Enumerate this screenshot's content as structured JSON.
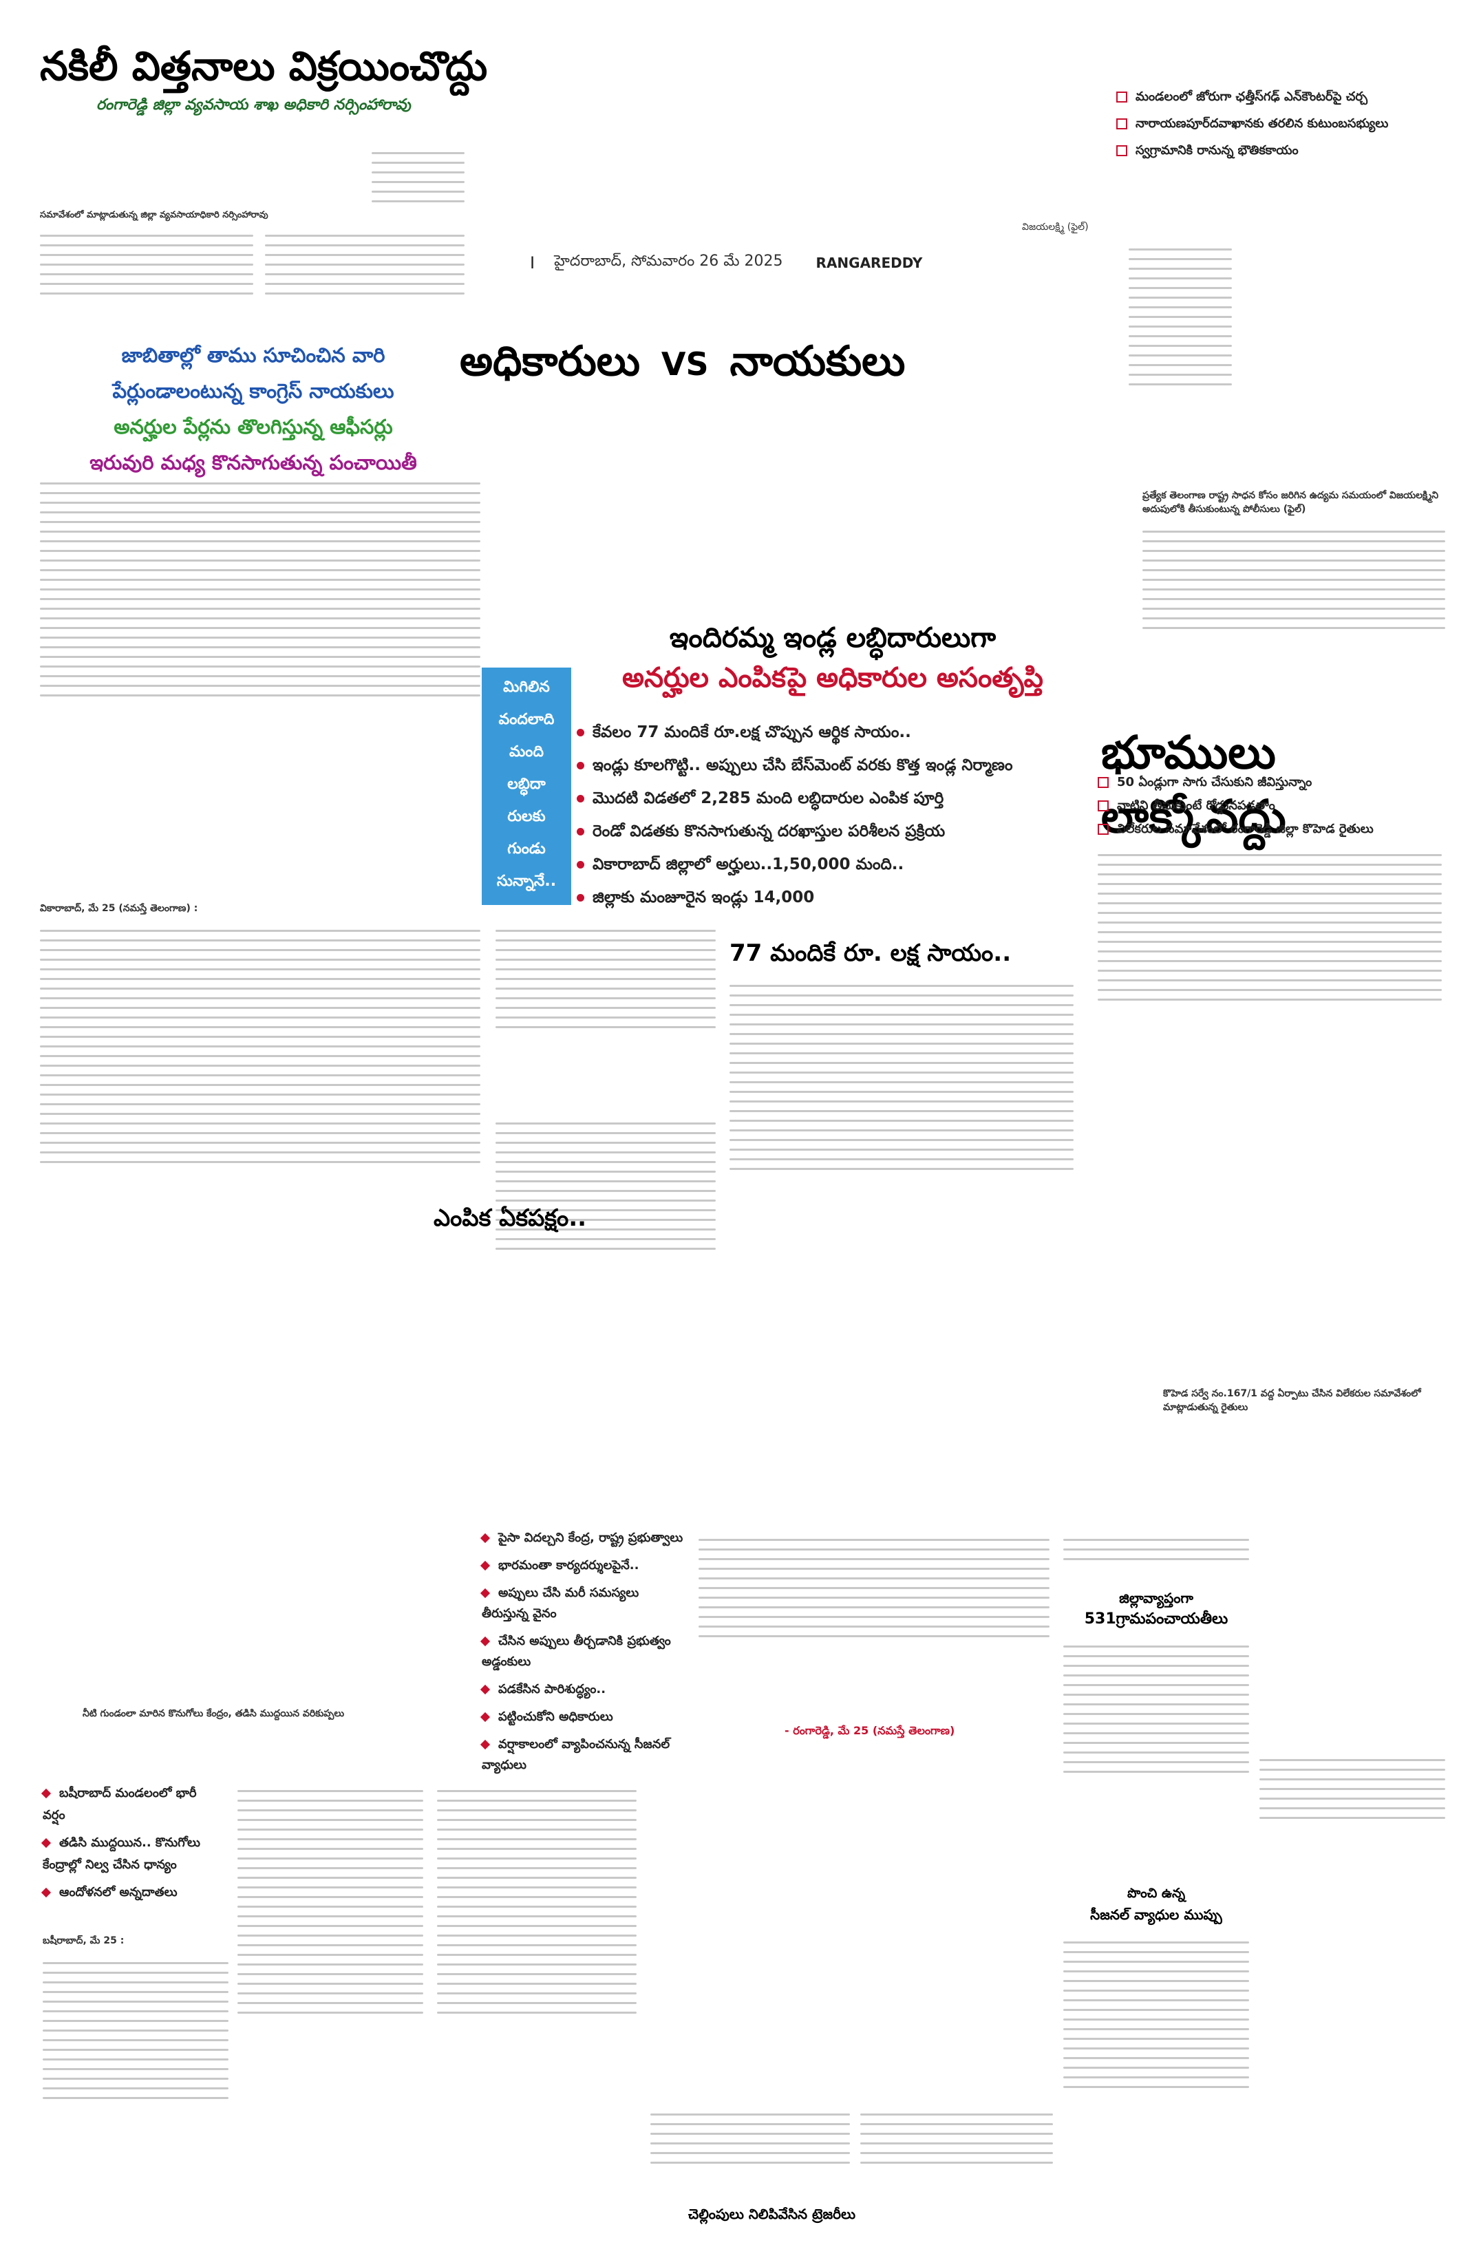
{
  "header": {
    "main_title": "నకిలీ విత్తనాలు విక్రయించొద్దు",
    "subtitle": "రంగారెడ్డి జిల్లా వ్యవసాయ శాఖ అధికారి నర్సింహారావు",
    "meeting_caption": "సమావేశంలో మాట్లాడుతున్న జిల్లా వ్యవసాయాధికారి నర్సింహారావు",
    "dateline": "హైదరాబాద్, సోమవారం 26 మే 2025",
    "section": "RANGAREDDY",
    "dateline_marker": "I"
  },
  "top_right_bullets": [
    "మండలంలో జోరుగా ఛత్తీస్‌గఢ్ ఎన్‌కౌంటర్‌పై చర్చ",
    "నారాయణపూర్‌దవాఖానకు తరలిన కుటుంబసభ్యులు",
    "స్వగ్రామానికి రానున్న భౌతికకాయం"
  ],
  "right_column_label": "విజయలక్ష్మి (ఫైల్)",
  "highlight_lines": [
    "జాబితాల్లో తాము సూచించిన వారి",
    "పేర్లుండాలంటున్న కాంగ్రెస్ నాయకులు",
    "అనర్హుల పేర్లను తొలగిస్తున్న ఆఫీసర్లు",
    "ఇరువురి మధ్య కొనసాగుతున్న పంచాయితీ"
  ],
  "center_headline": {
    "left": "అధికారులు",
    "vs": "VS",
    "right": "నాయకులు"
  },
  "photo_caption_right": "ప్రత్యేక తెలంగాణ రాష్ట్ర సాధన కోసం జరిగిన ఉద్యమ సమయంలో విజయలక్ష్మిని అదుపులోకి తీసుకుంటున్న పోలీసులు (ఫైల్)",
  "indiramma": {
    "headline_line1": "ఇందిరమ్మ ఇండ్ల లబ్ధిదారులుగా",
    "headline_line2": "అనర్హుల ఎంపికపై అధికారుల అసంతృప్తి",
    "side_label": [
      "మిగిలిన",
      "వందలాది",
      "మంది",
      "లబ్ధిదా",
      "రులకు",
      "గుండు",
      "సున్నానే.."
    ],
    "bullets": [
      "కేవలం 77 మందికే రూ.లక్ష చొప్పున ఆర్థిక సాయం..",
      "ఇండ్లు కూలగొట్టి.. అప్పులు చేసి బేస్‌మెంట్ వరకు కొత్త ఇండ్ల నిర్మాణం",
      "మొదటి విడతలో 2,285 మంది లబ్ధిదారుల ఎంపిక పూర్తి",
      "రెండో విడతకు కొనసాగుతున్న దరఖాస్తుల పరిశీలన ప్రక్రియ",
      "వికారాబాద్ జిల్లాలో అర్హులు..1,50,000 మంది..",
      "జిల్లాకు మంజూరైన ఇండ్లు 14,000"
    ],
    "subhead_lakh": "77 మందికే రూ. లక్ష సాయం..",
    "subhead_selection": "ఎంపిక ఏకపక్షం..",
    "dateline": "వికారాబాద్, మే 25 (నమస్తే తెలంగాణ) :"
  },
  "bhoomulu": {
    "headline": "భూములు లాక్కోవద్దు",
    "bullets": [
      "50 ఏండ్లుగా సాగు చేసుకుని జీవిస్తున్నాం",
      "వాటిని తీసుకుంటే రోడ్డునపడతాం",
      "విలేకరుల సమావేశంలో రంగారెడ్డి జిల్లా కొహెడ రైతులు"
    ],
    "photo_caption": "కొహెడ సర్వే నం.167/1 వద్ద ఏర్పాటు చేసిన విలేకరుల సమావేశంలో మాట్లాడుతున్న రైతులు"
  },
  "rain_story": {
    "photo_caption": "నీటి గుండంలా మారిన కొనుగోలు కేంద్రం, తడిసి ముద్దయిన వరికుప్పలు",
    "bullets": [
      "బషీరాబాద్ మండలంలో భారీ వర్షం",
      "తడిసి ముద్దయిన.. కొనుగోలు కేంద్రాల్లో నిల్వ చేసిన ధాన్యం",
      "ఆందోళనలో అన్నదాతలు"
    ],
    "dateline": "బషీరాబాద్, మే 25 :"
  },
  "gram_panchayat": {
    "bullets": [
      "పైసా విదల్చని కేంద్ర, రాష్ట్ర ప్రభుత్వాలు",
      "భారమంతా కార్యదర్శులపైనే..",
      "అప్పులు చేసి మరీ సమస్యలు తీరుస్తున్న వైనం",
      "చేసిన అప్పులు తీర్చడానికి ప్రభుత్వం అడ్డంకులు",
      "పడకేసిన పారిశుద్ధ్యం..",
      "పట్టించుకోని అధికారులు",
      "వర్షాకాలంలో వ్యాపించనున్న సీజనల్ వ్యాధులు"
    ],
    "credit": "- రంగారెడ్డి, మే 25 (నమస్తే తెలంగాణ)",
    "subhead_district": "జిల్లావ్యాప్తంగా",
    "subhead_count": "531గ్రామపంచాయతీలు",
    "subhead_seasonal_1": "పొంచి ఉన్న",
    "subhead_seasonal_2": "సీజనల్ వ్యాధుల ముప్పు",
    "subhead_bills": "చెల్లింపులు నిలిపివేసిన ట్రెజరీలు"
  },
  "palette": {
    "headline_red": "#c8102e",
    "highlight_blue": "#1f55b0",
    "highlight_green": "#2f9a32",
    "highlight_purple": "#a01b8c",
    "subtitle_green": "#1f6e2a",
    "side_bar_blue": "#3a9ad9"
  }
}
